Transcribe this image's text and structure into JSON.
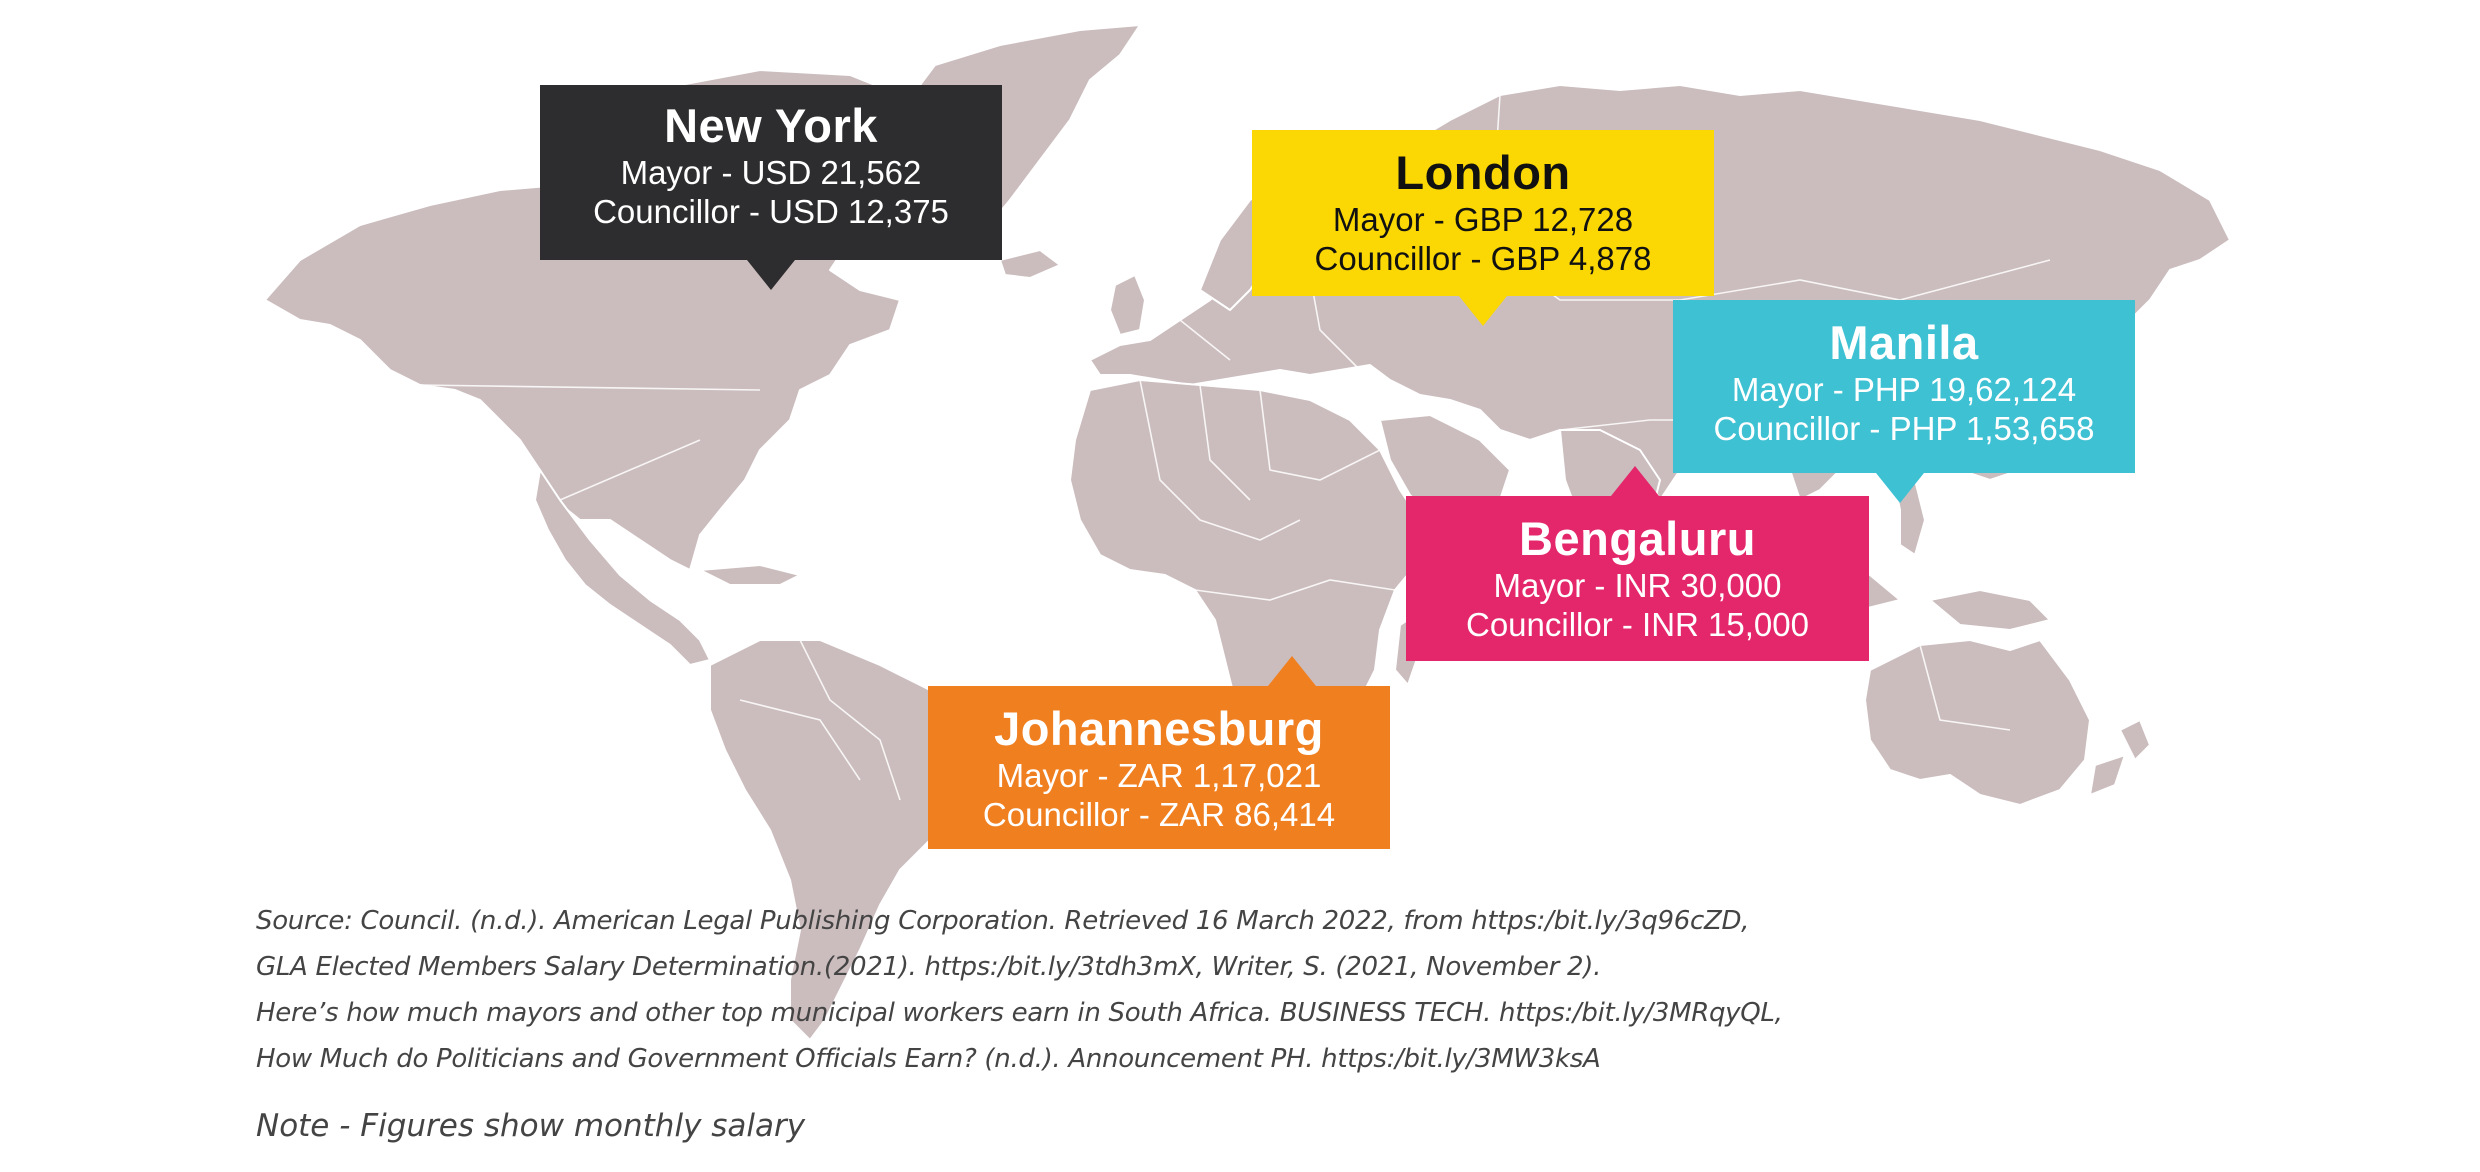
{
  "map": {
    "land_color": "#cbbcbd",
    "border_color": "#ffffff",
    "background": "#ffffff"
  },
  "callouts": {
    "new_york": {
      "city": "New York",
      "mayor": "Mayor - USD 21,562",
      "councillor": "Councillor - USD 12,375",
      "color": "#2d2d2f",
      "text_color": "#ffffff"
    },
    "london": {
      "city": "London",
      "mayor": "Mayor - GBP 12,728",
      "councillor": "Councillor - GBP 4,878",
      "color": "#fbd804",
      "text_color": "#111111"
    },
    "manila": {
      "city": "Manila",
      "mayor": "Mayor - PHP 19,62,124",
      "councillor": "Councillor - PHP 1,53,658",
      "color": "#3ec1d3",
      "text_color": "#ffffff"
    },
    "bengaluru": {
      "city": "Bengaluru",
      "mayor": "Mayor - INR 30,000",
      "councillor": "Councillor - INR 15,000",
      "color": "#e4266a",
      "text_color": "#ffffff"
    },
    "johannesburg": {
      "city": "Johannesburg",
      "mayor": "Mayor - ZAR 1,17,021",
      "councillor": "Councillor - ZAR 86,414",
      "color": "#f07f20",
      "text_color": "#ffffff"
    }
  },
  "source": {
    "lines": [
      "Source: Council. (n.d.). American Legal Publishing Corporation. Retrieved 16 March 2022, from https:/bit.ly/3q96cZD,",
      "GLA Elected Members Salary Determination.(2021). https:/bit.ly/3tdh3mX, Writer, S. (2021, November 2).",
      "Here’s how much mayors and other top municipal workers earn in South Africa. BUSINESS TECH. https:/bit.ly/3MRqyQL,",
      "How Much do Politicians and Government Officials Earn? (n.d.). Announcement PH. https:/bit.ly/3MW3ksA"
    ]
  },
  "note": "Note - Figures show monthly salary"
}
